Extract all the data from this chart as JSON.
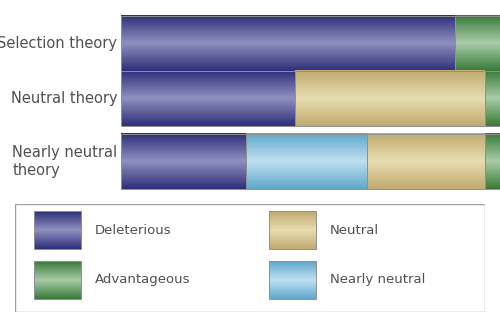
{
  "bars": [
    {
      "label": "Selection theory",
      "label_multiline": false,
      "segments": [
        {
          "name": "Deleterious",
          "value": 0.88,
          "color_type": "deleterious"
        },
        {
          "name": "Advantageous",
          "value": 0.12,
          "color_type": "advantageous"
        }
      ]
    },
    {
      "label": "Neutral theory",
      "label_multiline": false,
      "segments": [
        {
          "name": "Deleterious",
          "value": 0.46,
          "color_type": "deleterious"
        },
        {
          "name": "Neutral",
          "value": 0.5,
          "color_type": "neutral"
        },
        {
          "name": "Advantageous",
          "value": 0.04,
          "color_type": "advantageous"
        }
      ]
    },
    {
      "label": "Nearly neutral\ntheory",
      "label_multiline": true,
      "segments": [
        {
          "name": "Deleterious",
          "value": 0.33,
          "color_type": "deleterious"
        },
        {
          "name": "Nearly neutral",
          "value": 0.32,
          "color_type": "nearly_neutral"
        },
        {
          "name": "Neutral",
          "value": 0.31,
          "color_type": "neutral"
        },
        {
          "name": "Advantageous",
          "value": 0.04,
          "color_type": "advantageous"
        }
      ]
    }
  ],
  "colors": {
    "deleterious_dark": "#2e2e7a",
    "deleterious_light": "#9090c0",
    "advantageous_dark": "#3a7a3a",
    "advantageous_light": "#a8cca8",
    "neutral_dark": "#c0aa70",
    "neutral_light": "#e8ddb0",
    "nearly_neutral_dark": "#60a8cc",
    "nearly_neutral_light": "#c0e0f0"
  },
  "legend_items": [
    {
      "label": "Deleterious",
      "color_type": "deleterious",
      "col": 0,
      "row": 0
    },
    {
      "label": "Neutral",
      "color_type": "neutral",
      "col": 1,
      "row": 0
    },
    {
      "label": "Advantageous",
      "color_type": "advantageous",
      "col": 0,
      "row": 1
    },
    {
      "label": "Nearly neutral",
      "color_type": "nearly_neutral",
      "col": 1,
      "row": 1
    }
  ],
  "figure_bg": "#ffffff",
  "border_color": "#a0a0a0",
  "text_color": "#505050",
  "label_fontsize": 10.5,
  "legend_fontsize": 9.5
}
